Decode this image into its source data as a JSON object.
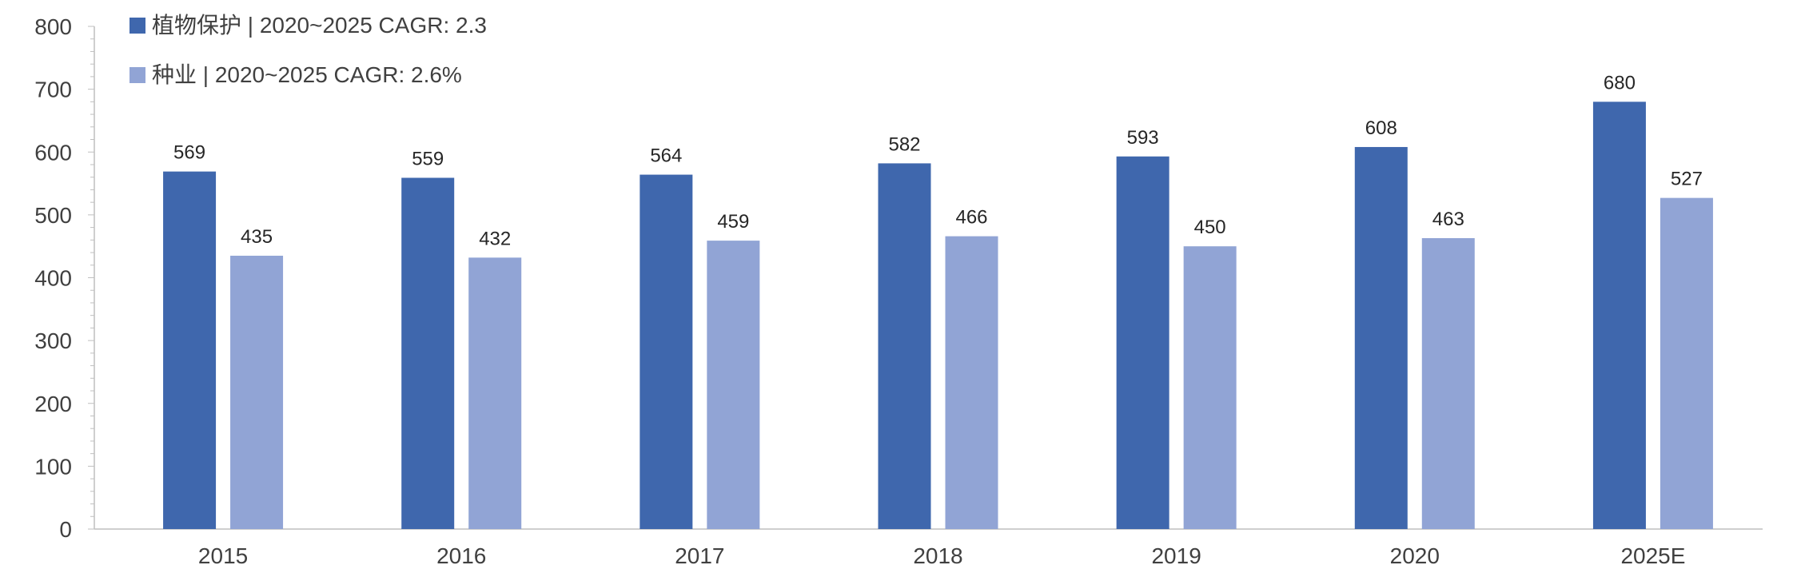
{
  "chart_data": {
    "type": "bar",
    "categories": [
      "2015",
      "2016",
      "2017",
      "2018",
      "2019",
      "2020",
      "2025E"
    ],
    "series": [
      {
        "name": "植物保护 | 2020~2025 CAGR: 2.3",
        "color": "#3F67AD",
        "values": [
          569,
          559,
          564,
          582,
          593,
          608,
          680
        ]
      },
      {
        "name": "种业 | 2020~2025 CAGR: 2.6%",
        "color": "#91A4D5",
        "values": [
          435,
          432,
          459,
          466,
          450,
          463,
          527
        ]
      }
    ],
    "ylim": [
      0,
      800
    ],
    "yticks": [
      0,
      100,
      200,
      300,
      400,
      500,
      600,
      700,
      800
    ],
    "grid": false,
    "legend": "top-left",
    "title": "",
    "xlabel": "",
    "ylabel": ""
  }
}
